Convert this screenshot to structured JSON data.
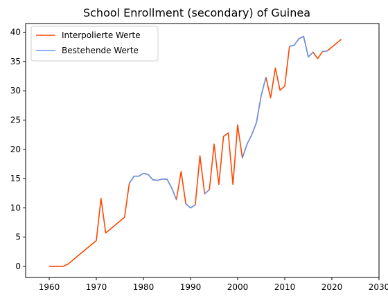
{
  "chart_data": {
    "type": "line",
    "title": "School Enrollment (secondary) of Guinea",
    "xlabel": "",
    "ylabel": "",
    "xlim": [
      1955,
      2030
    ],
    "ylim": [
      -1.9,
      41.5
    ],
    "xticks": [
      1960,
      1970,
      1980,
      1990,
      2000,
      2010,
      2020,
      2030
    ],
    "yticks": [
      0,
      5,
      10,
      15,
      20,
      25,
      30,
      35,
      40
    ],
    "grid": false,
    "legend_position": "top-left",
    "series": [
      {
        "name": "Interpolierte Werte",
        "color": "#ff4500",
        "points": [
          [
            1960,
            0.0
          ],
          [
            1963,
            0.0
          ],
          [
            1964,
            0.4
          ],
          [
            1970,
            4.4
          ],
          [
            1971,
            11.6
          ],
          [
            1972,
            5.7
          ],
          [
            1976,
            8.4
          ],
          [
            1977,
            14.2
          ],
          [
            1978,
            15.4
          ],
          [
            1979,
            15.4
          ],
          [
            1980,
            15.9
          ],
          [
            1981,
            15.7
          ],
          [
            1982,
            14.8
          ],
          [
            1983,
            14.7
          ],
          [
            1984,
            14.9
          ],
          [
            1985,
            14.9
          ],
          [
            1986,
            13.4
          ],
          [
            1987,
            11.4
          ],
          [
            1988,
            16.2
          ],
          [
            1989,
            10.7
          ],
          [
            1990,
            10.0
          ],
          [
            1991,
            10.5
          ],
          [
            1992,
            18.9
          ],
          [
            1993,
            12.4
          ],
          [
            1994,
            13.1
          ],
          [
            1995,
            20.9
          ],
          [
            1996,
            14.0
          ],
          [
            1997,
            22.2
          ],
          [
            1998,
            22.8
          ],
          [
            1999,
            14.0
          ],
          [
            2000,
            24.2
          ],
          [
            2001,
            18.5
          ],
          [
            2002,
            20.9
          ],
          [
            2003,
            22.5
          ],
          [
            2004,
            24.6
          ],
          [
            2005,
            29.2
          ],
          [
            2006,
            32.3
          ],
          [
            2007,
            28.8
          ],
          [
            2008,
            33.9
          ],
          [
            2009,
            30.1
          ],
          [
            2010,
            30.8
          ],
          [
            2011,
            37.6
          ],
          [
            2012,
            37.8
          ],
          [
            2013,
            38.9
          ],
          [
            2014,
            39.3
          ],
          [
            2015,
            35.8
          ],
          [
            2016,
            36.6
          ],
          [
            2017,
            35.5
          ],
          [
            2018,
            36.7
          ],
          [
            2019,
            36.8
          ],
          [
            2022,
            38.8
          ]
        ]
      },
      {
        "name": "Bestehende Werte",
        "color": "#6495ed",
        "segments": [
          [
            [
              1977,
              14.2
            ],
            [
              1978,
              15.4
            ],
            [
              1979,
              15.4
            ],
            [
              1980,
              15.9
            ],
            [
              1981,
              15.7
            ],
            [
              1982,
              14.8
            ],
            [
              1983,
              14.7
            ],
            [
              1984,
              14.9
            ],
            [
              1985,
              14.9
            ],
            [
              1986,
              13.4
            ],
            [
              1987,
              11.4
            ]
          ],
          [
            [
              1989,
              10.7
            ],
            [
              1990,
              10.0
            ],
            [
              1991,
              10.5
            ]
          ],
          [
            [
              1993,
              12.4
            ],
            [
              1994,
              13.1
            ]
          ],
          [
            [
              2001,
              18.5
            ],
            [
              2002,
              20.9
            ],
            [
              2003,
              22.5
            ],
            [
              2004,
              24.6
            ],
            [
              2005,
              29.2
            ],
            [
              2006,
              32.3
            ]
          ],
          [
            [
              2011,
              37.6
            ],
            [
              2012,
              37.8
            ],
            [
              2013,
              38.9
            ],
            [
              2014,
              39.3
            ],
            [
              2015,
              35.8
            ],
            [
              2016,
              36.6
            ]
          ],
          [
            [
              2018,
              36.7
            ],
            [
              2019,
              36.8
            ]
          ]
        ]
      }
    ]
  }
}
